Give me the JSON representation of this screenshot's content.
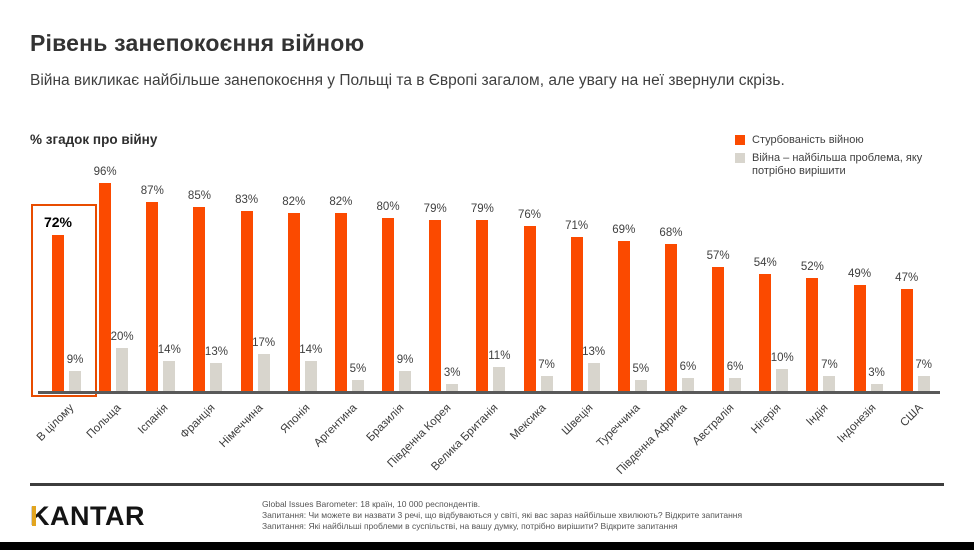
{
  "header": {
    "title": "Рівень занепокоєння війною",
    "subtitle": "Війна викликає найбільше занепокоєння у Польщі та в Європі загалом, але увагу на неї звернули скрізь."
  },
  "chart": {
    "axis_title": "% згадок про війну"
  },
  "chart_data": {
    "type": "bar",
    "title": "Рівень занепокоєння війною",
    "ylabel": "% згадок про війну",
    "ylim": [
      0,
      100
    ],
    "grid": false,
    "legend_position": "top-right",
    "value_label_format": "percent",
    "highlighted_category": "В цілому",
    "categories": [
      "В цілому",
      "Польща",
      "Іспанія",
      "Франція",
      "Німеччина",
      "Японія",
      "Аргентина",
      "Бразилія",
      "Південна Корея",
      "Велика Британія",
      "Мексика",
      "Швеція",
      "Туреччина",
      "Південна Африка",
      "Австралія",
      "Нігерія",
      "Індія",
      "Індонезія",
      "США"
    ],
    "series": [
      {
        "name": "Стурбованість війною",
        "color": "#fb4a00",
        "values": [
          72,
          96,
          87,
          85,
          83,
          82,
          82,
          80,
          79,
          79,
          76,
          71,
          69,
          68,
          57,
          54,
          52,
          49,
          47
        ]
      },
      {
        "name": "Війна – найбільша проблема, яку потрібно вирішити",
        "color": "#d8d5cd",
        "values": [
          9,
          20,
          14,
          13,
          17,
          14,
          5,
          9,
          3,
          11,
          7,
          13,
          5,
          6,
          6,
          10,
          7,
          3,
          7
        ]
      }
    ]
  },
  "footer": {
    "logo_text": "KANTAR",
    "note1": "Global Issues Barometer: 18 країн, 10 000 респондентів.",
    "note2": "Запитання: Чи можете ви назвати 3 речі, що відбуваються у світі, які вас зараз найбільше хвилюють? Відкрите запитання",
    "note3": "Запитання: Які найбільші проблеми в суспільстві, на вашу думку, потрібно вирішити? Відкрите запитання"
  },
  "colors": {
    "accent_orange": "#fb4a00",
    "bar_gray": "#d8d5cd",
    "kantar_gold": "#e2a51f",
    "axis_line": "#595959"
  }
}
